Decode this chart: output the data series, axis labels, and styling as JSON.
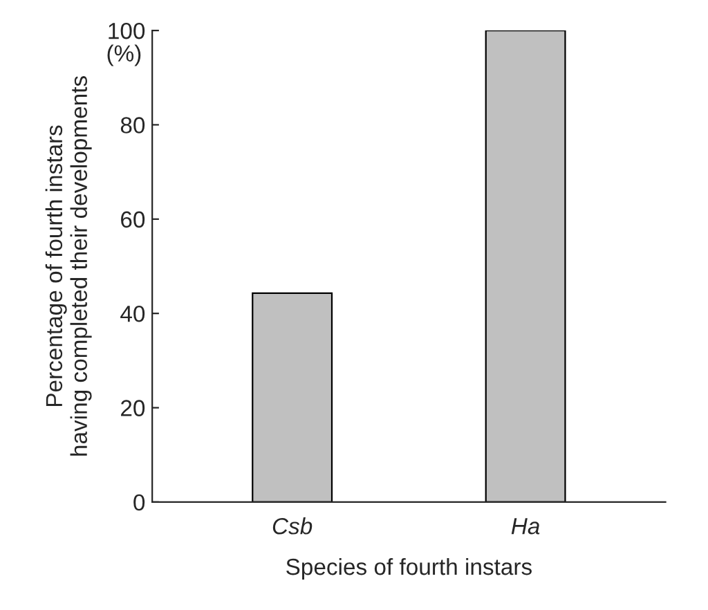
{
  "chart_data": {
    "type": "bar",
    "xlabel": "Species of fourth instars",
    "ylabel": "Percentage of fourth instars\nhaving completed their developments",
    "categories": [
      "Csb",
      "Ha"
    ],
    "values": [
      44.3,
      100
    ],
    "color": "#c0c0c0",
    "ylim": [
      0,
      100
    ],
    "yticks": [
      0,
      20,
      40,
      60,
      80,
      100
    ],
    "annotations": [
      "(%)"
    ],
    "grid": false,
    "legend": false
  }
}
